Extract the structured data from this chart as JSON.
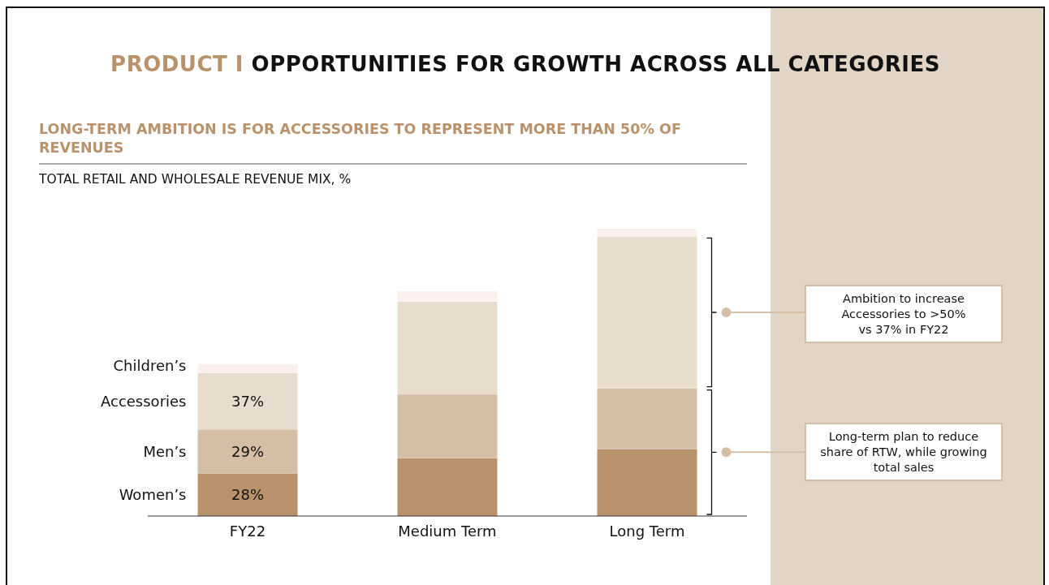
{
  "chart_data": {
    "type": "bar",
    "stacked": true,
    "title": "PRODUCT I OPPORTUNITIES FOR GROWTH ACROSS ALL CATEGORIES",
    "subtitle": "LONG-TERM AMBITION IS FOR ACCESSORIES TO REPRESENT MORE THAN 50% OF REVENUES",
    "categories": [
      "FY22",
      "Medium Term",
      "Long Term"
    ],
    "series": [
      {
        "name": "Women’s",
        "color": "#b9926b",
        "values": [
          28,
          38,
          44
        ],
        "value_labels": [
          "28%",
          null,
          null
        ]
      },
      {
        "name": "Men’s",
        "color": "#d5bea6",
        "values": [
          29,
          42,
          40
        ],
        "value_labels": [
          "29%",
          null,
          null
        ]
      },
      {
        "name": "Accessories",
        "color": "#e8ddcd",
        "values": [
          37,
          61,
          100
        ],
        "value_labels": [
          "37%",
          null,
          null
        ]
      },
      {
        "name": "Children’s",
        "color": "#fbf0ee",
        "values": [
          6,
          7,
          5
        ]
      }
    ],
    "annotations": [
      "TOTAL RETAIL AND WHOLESALE REVENUE MIX, %",
      "Ambition to increase\nAccessories to >50%\nvs 37% in FY22",
      "Long-term plan to reduce\nshare of RTW, while growing\ntotal sales"
    ]
  }
}
